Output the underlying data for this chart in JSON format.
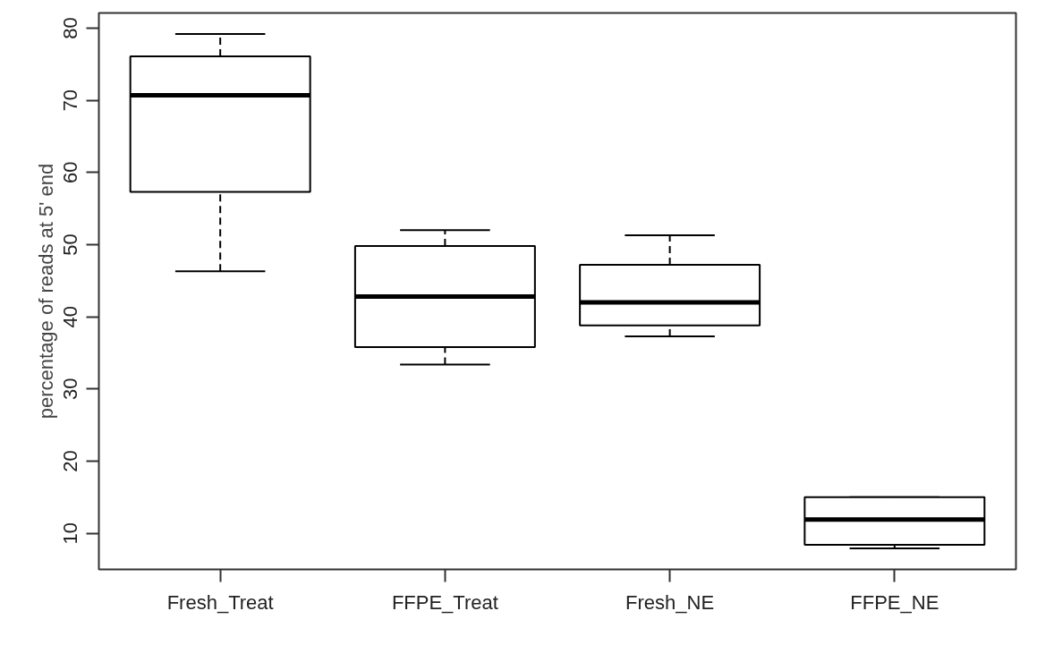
{
  "chart_data": {
    "type": "box",
    "categories": [
      "Fresh_Treat",
      "FFPE_Treat",
      "Fresh_NE",
      "FFPE_NE"
    ],
    "ylabel": "percentage of reads at 5' end",
    "ylim": [
      5,
      82.1
    ],
    "yticks": [
      10,
      20,
      30,
      40,
      50,
      60,
      70,
      80
    ],
    "grid": false,
    "line_style": "dashed",
    "boxes": [
      {
        "low": 46.3,
        "q1": 57.3,
        "median": 70.7,
        "q3": 76.1,
        "high": 79.2
      },
      {
        "low": 33.4,
        "q1": 35.8,
        "median": 42.8,
        "q3": 49.8,
        "high": 52.0
      },
      {
        "low": 37.3,
        "q1": 38.8,
        "median": 42.0,
        "q3": 47.2,
        "high": 51.3
      },
      {
        "low": 7.9,
        "q1": 8.4,
        "median": 11.9,
        "q3": 15.0,
        "high": 15.0
      }
    ]
  }
}
